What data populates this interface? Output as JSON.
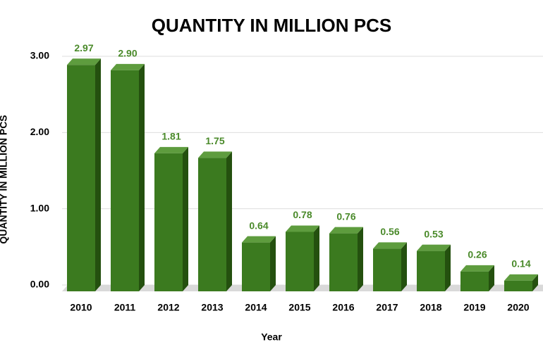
{
  "chart_data": {
    "type": "bar3d",
    "title": "QUANTITY IN MILLION PCS",
    "x_label": "Year",
    "y_label": "QUANTITY IN MILLION PCS",
    "categories": [
      "2010",
      "2011",
      "2012",
      "2013",
      "2014",
      "2015",
      "2016",
      "2017",
      "2018",
      "2019",
      "2020"
    ],
    "values": [
      2.97,
      2.9,
      1.81,
      1.75,
      0.64,
      0.78,
      0.76,
      0.56,
      0.53,
      0.26,
      0.14
    ],
    "value_labels": [
      "2.97",
      "2.90",
      "1.81",
      "1.75",
      "0.64",
      "0.78",
      "0.76",
      "0.56",
      "0.53",
      "0.26",
      "0.14"
    ],
    "color": "#3b7a1f",
    "ylim": [
      0,
      3
    ],
    "yticks": [
      {
        "value": 0,
        "label": "0.00"
      },
      {
        "value": 1,
        "label": "1.00"
      },
      {
        "value": 2,
        "label": "2.00"
      },
      {
        "value": 3,
        "label": "3.00"
      }
    ],
    "grid": true
  }
}
